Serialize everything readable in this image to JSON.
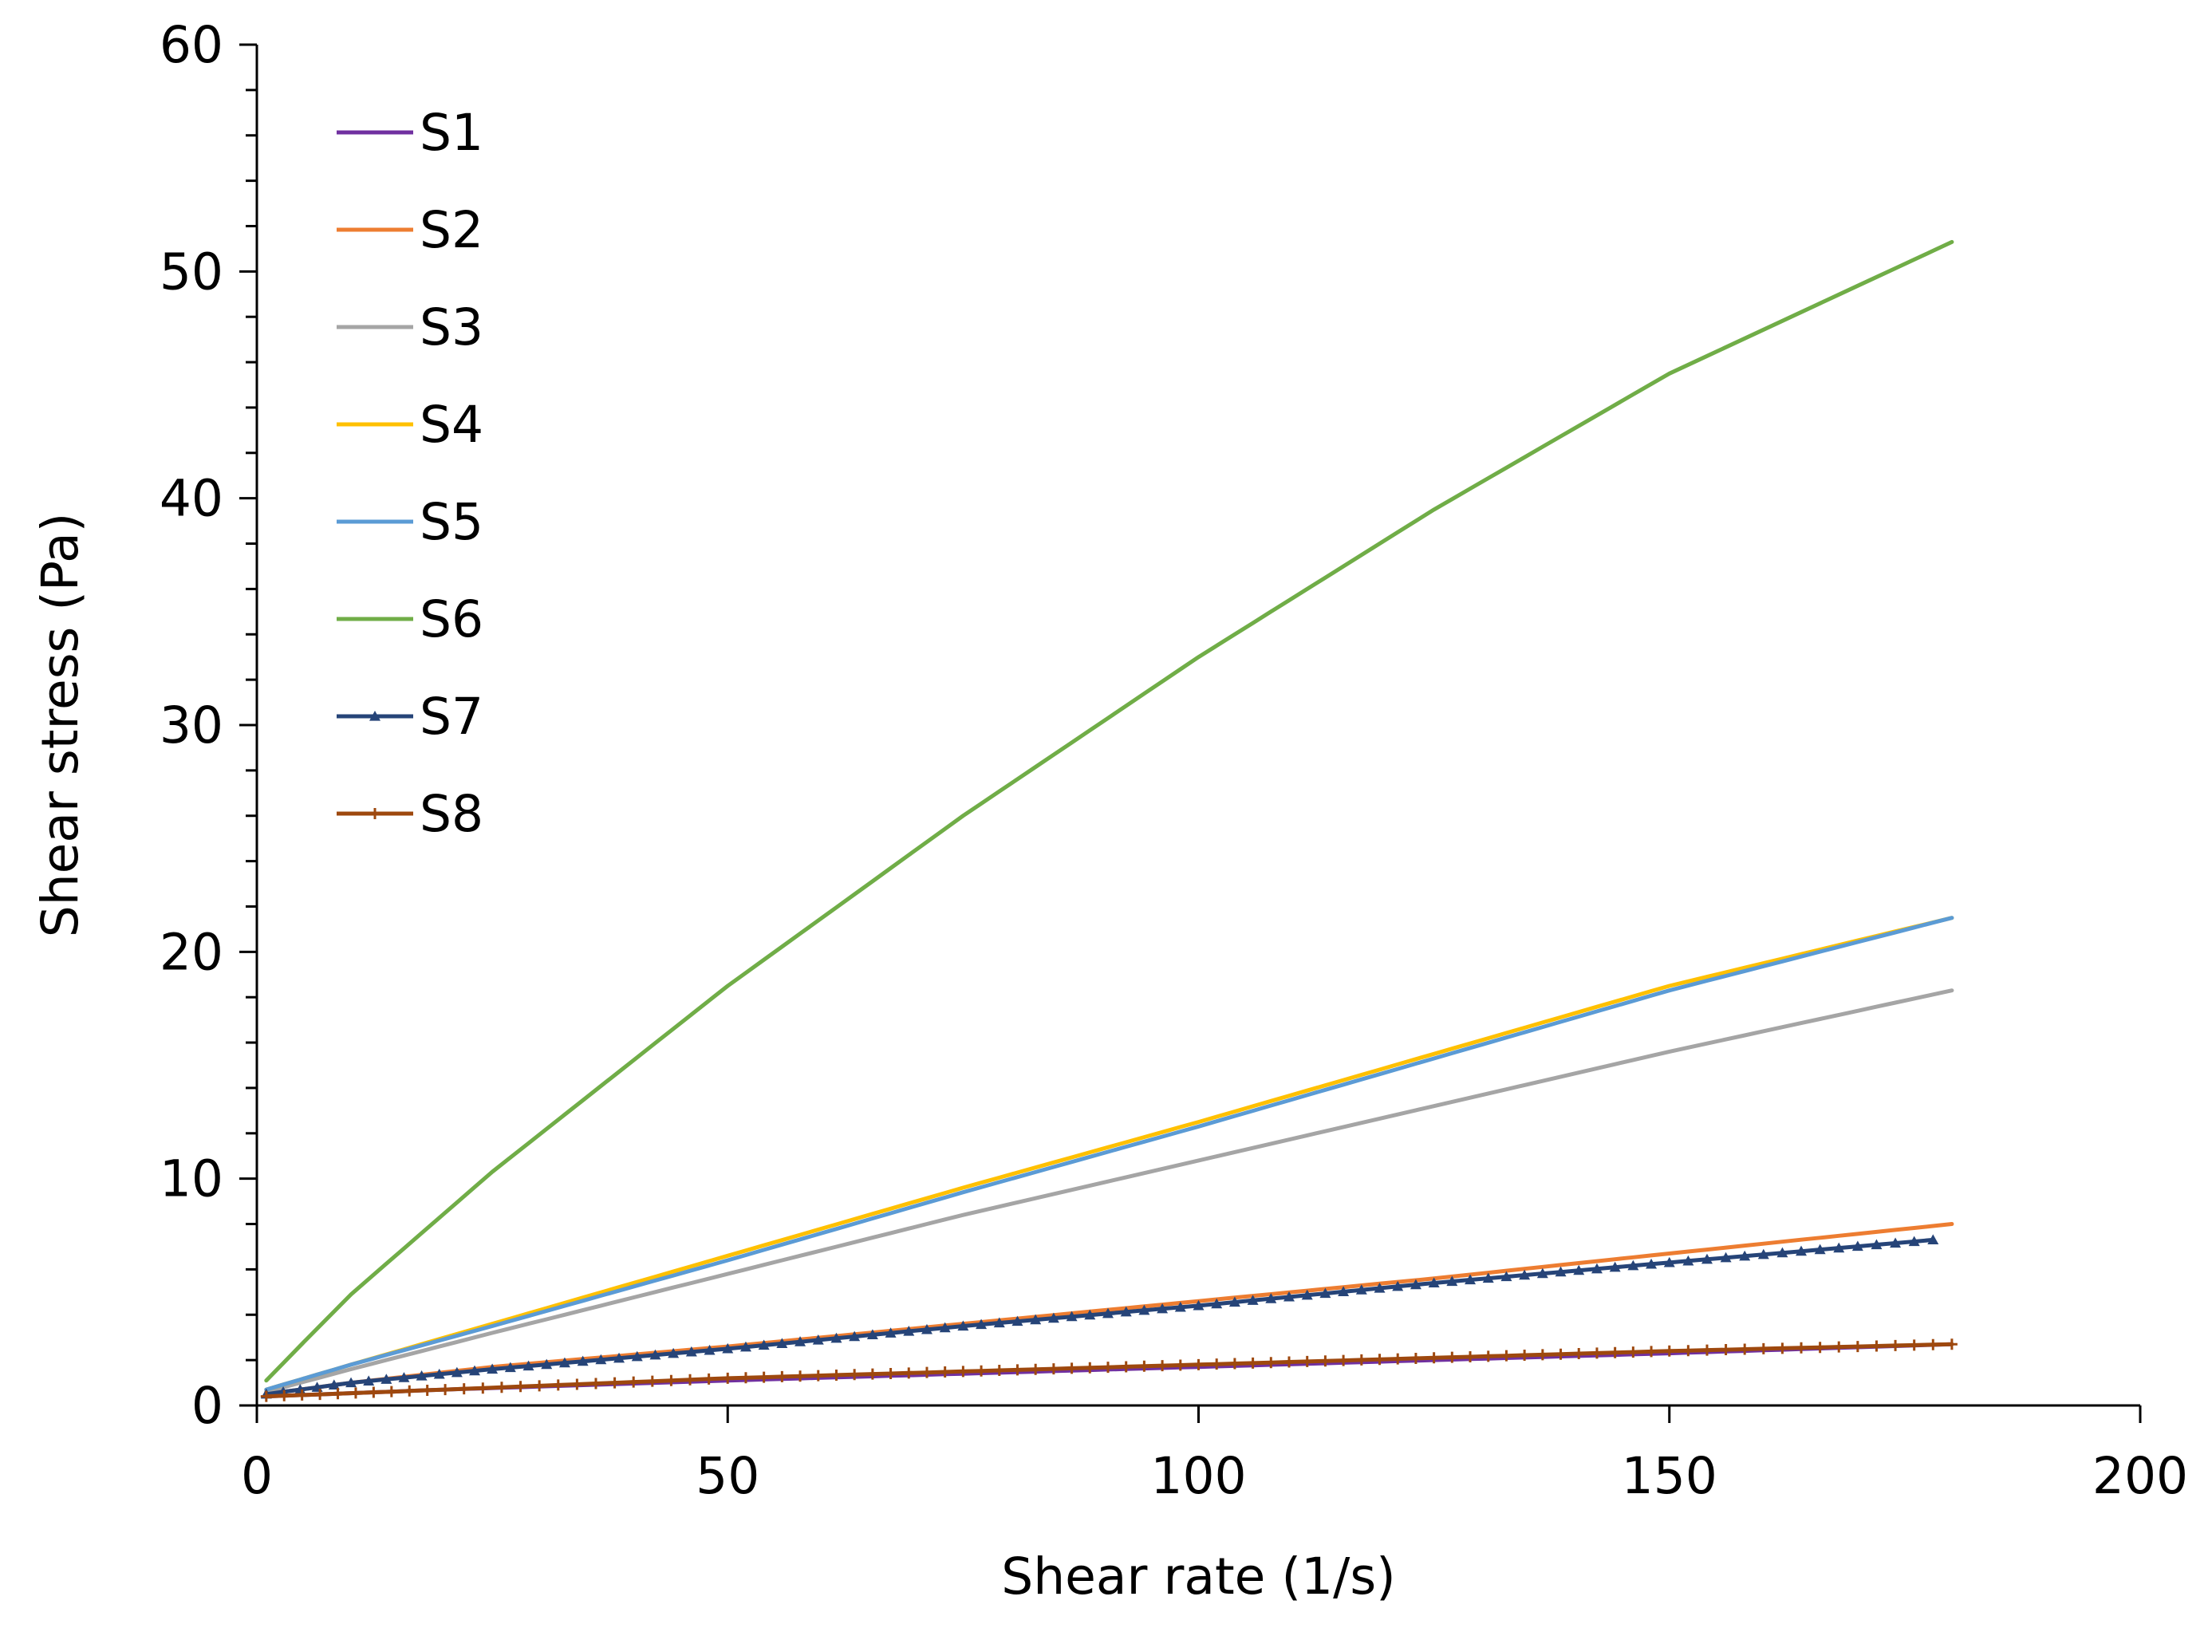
{
  "chart_data": {
    "type": "line",
    "xlabel": "Shear rate (1/s)",
    "ylabel": "Shear stress (Pa)",
    "xlim": [
      0,
      200
    ],
    "ylim": [
      0,
      60
    ],
    "x_ticks": [
      0,
      50,
      100,
      150,
      200
    ],
    "y_ticks": [
      0,
      10,
      20,
      30,
      40,
      50,
      60
    ],
    "y_minor_step": 2,
    "grid": false,
    "legend_position": "top-left",
    "series": [
      {
        "name": "S1",
        "color": "#7030A0",
        "marker": "none",
        "x": [
          1,
          20,
          50,
          75,
          100,
          125,
          150,
          180
        ],
        "y": [
          0.4,
          0.7,
          1.1,
          1.4,
          1.7,
          2.0,
          2.3,
          2.7
        ]
      },
      {
        "name": "S2",
        "color": "#ED7D31",
        "marker": "none",
        "x": [
          1,
          10,
          25,
          50,
          75,
          100,
          125,
          150,
          180
        ],
        "y": [
          0.5,
          1.0,
          1.7,
          2.6,
          3.6,
          4.6,
          5.6,
          6.7,
          8.0
        ]
      },
      {
        "name": "S3",
        "color": "#A5A5A5",
        "marker": "none",
        "x": [
          1,
          10,
          25,
          50,
          75,
          100,
          125,
          150,
          180
        ],
        "y": [
          0.6,
          1.6,
          3.2,
          5.8,
          8.4,
          10.8,
          13.2,
          15.6,
          18.3
        ]
      },
      {
        "name": "S4",
        "color": "#FFC000",
        "marker": "none",
        "x": [
          1,
          10,
          25,
          50,
          75,
          100,
          125,
          150,
          180
        ],
        "y": [
          0.7,
          1.8,
          3.6,
          6.6,
          9.6,
          12.5,
          15.5,
          18.5,
          21.5
        ]
      },
      {
        "name": "S5",
        "color": "#5B9BD5",
        "marker": "none",
        "x": [
          1,
          10,
          25,
          50,
          75,
          100,
          125,
          150,
          180
        ],
        "y": [
          0.7,
          1.8,
          3.5,
          6.4,
          9.4,
          12.3,
          15.3,
          18.3,
          21.5
        ]
      },
      {
        "name": "S6",
        "color": "#70AD47",
        "marker": "none",
        "x": [
          1,
          5,
          10,
          25,
          50,
          75,
          100,
          125,
          150,
          180
        ],
        "y": [
          1.1,
          2.8,
          4.9,
          10.3,
          18.5,
          26.0,
          33.0,
          39.5,
          45.5,
          51.3
        ]
      },
      {
        "name": "S7",
        "color": "#264478",
        "marker": "triangle",
        "x": [
          1,
          10,
          25,
          50,
          75,
          100,
          125,
          150,
          178
        ],
        "y": [
          0.5,
          1.0,
          1.6,
          2.5,
          3.5,
          4.4,
          5.4,
          6.3,
          7.3
        ]
      },
      {
        "name": "S8",
        "color": "#9E480E",
        "marker": "plus",
        "x": [
          1,
          20,
          50,
          75,
          100,
          125,
          150,
          180
        ],
        "y": [
          0.4,
          0.7,
          1.2,
          1.5,
          1.8,
          2.1,
          2.4,
          2.7
        ]
      }
    ]
  }
}
